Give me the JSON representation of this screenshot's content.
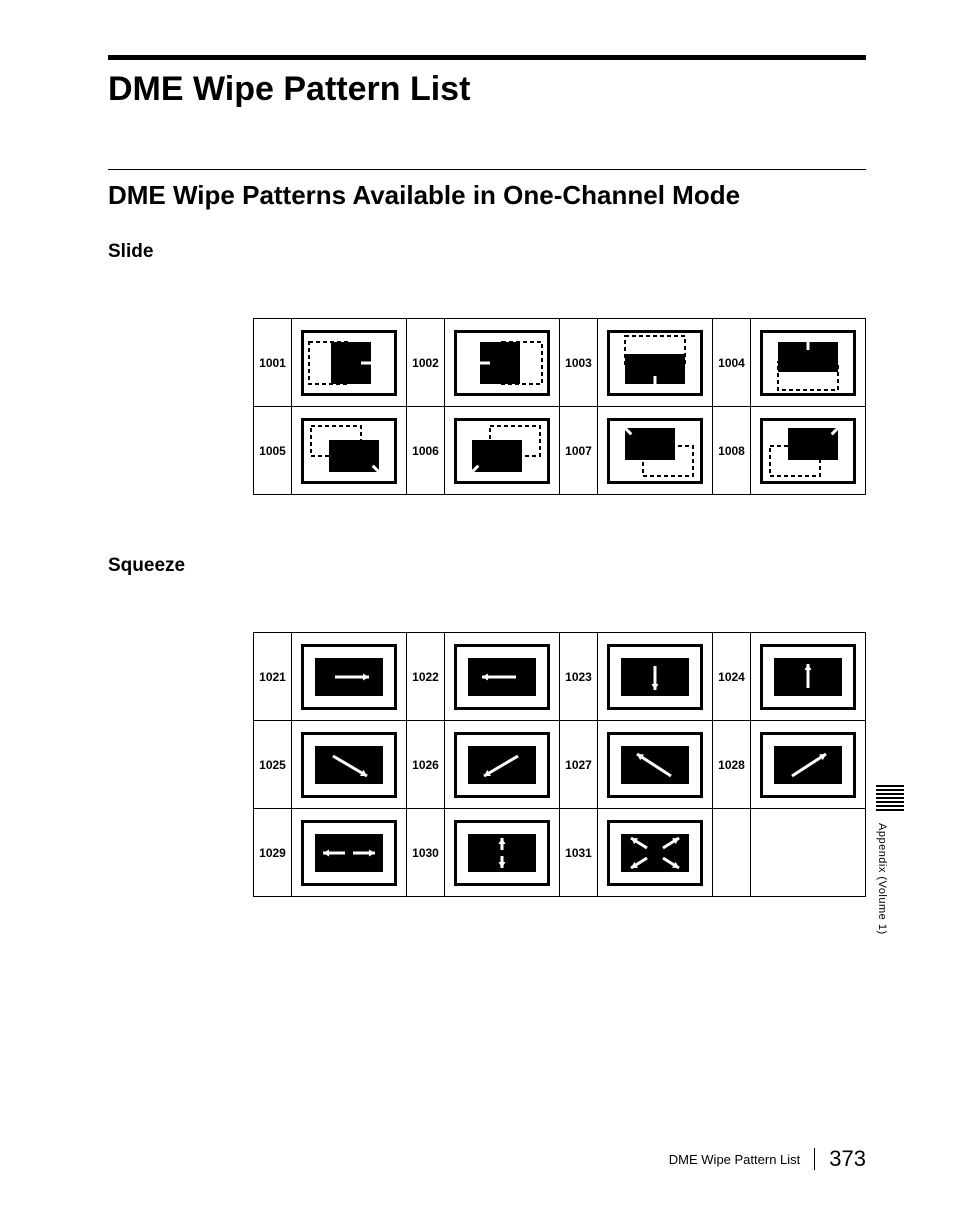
{
  "page": {
    "main_title": "DME Wipe Pattern List",
    "sub_title": "DME Wipe Patterns Available in One-Channel Mode",
    "side_label": "Appendix (Volume 1)",
    "footer_title": "DME Wipe Pattern List",
    "page_number": "373"
  },
  "colors": {
    "black": "#000000",
    "white": "#ffffff"
  },
  "icon": {
    "w": 96,
    "h": 66,
    "stroke": 3
  },
  "sections": [
    {
      "label": "Slide",
      "cols": 4,
      "cells": [
        {
          "num": "1001",
          "type": "slide-right"
        },
        {
          "num": "1002",
          "type": "slide-left"
        },
        {
          "num": "1003",
          "type": "slide-down"
        },
        {
          "num": "1004",
          "type": "slide-up"
        },
        {
          "num": "1005",
          "type": "slide-dr"
        },
        {
          "num": "1006",
          "type": "slide-dl"
        },
        {
          "num": "1007",
          "type": "slide-ul"
        },
        {
          "num": "1008",
          "type": "slide-ur"
        }
      ]
    },
    {
      "label": "Squeeze",
      "cols": 4,
      "cells": [
        {
          "num": "1021",
          "type": "sq-right"
        },
        {
          "num": "1022",
          "type": "sq-left"
        },
        {
          "num": "1023",
          "type": "sq-down"
        },
        {
          "num": "1024",
          "type": "sq-up"
        },
        {
          "num": "1025",
          "type": "sq-dr"
        },
        {
          "num": "1026",
          "type": "sq-dl"
        },
        {
          "num": "1027",
          "type": "sq-ul"
        },
        {
          "num": "1028",
          "type": "sq-ur"
        },
        {
          "num": "1029",
          "type": "sq-h"
        },
        {
          "num": "1030",
          "type": "sq-v"
        },
        {
          "num": "1031",
          "type": "sq-all"
        },
        null
      ]
    }
  ]
}
